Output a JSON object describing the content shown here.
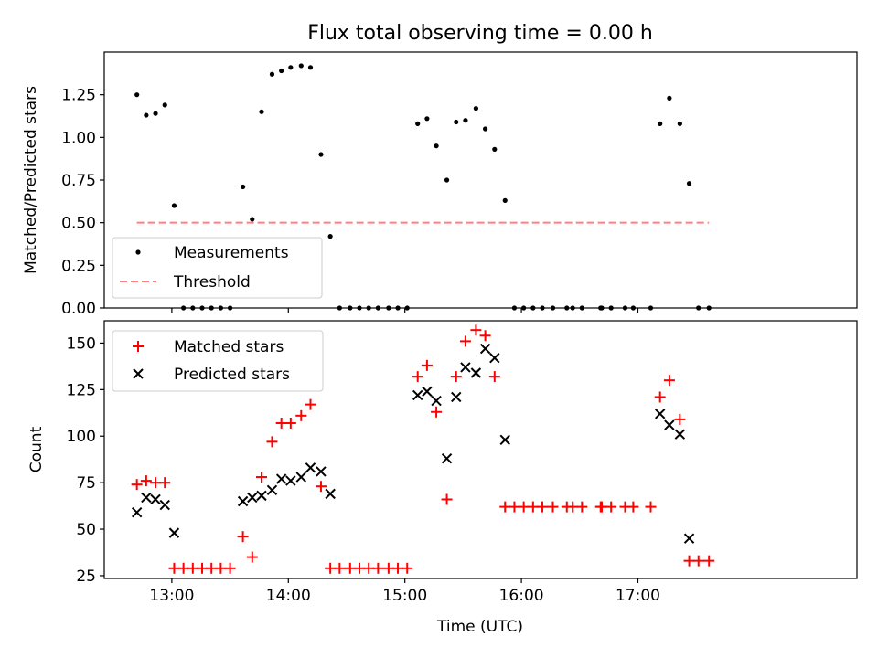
{
  "title": "Flux total observing time = 0.00 h",
  "colors": {
    "measurements": "#000000",
    "threshold": "#ff7f7f",
    "matched": "#ff0000",
    "predicted": "#000000"
  },
  "chart_data": [
    {
      "type": "scatter",
      "ylabel": "Matched/Predicted stars",
      "xlim_hours": [
        12.42,
        18.88
      ],
      "ylim": [
        0,
        1.5
      ],
      "yticks": [
        0.0,
        0.25,
        0.5,
        0.75,
        1.0,
        1.25
      ],
      "ytick_labels": [
        "0.00",
        "0.25",
        "0.50",
        "0.75",
        "1.00",
        "1.25"
      ],
      "grid": false,
      "legend": {
        "position": "lower-left",
        "entries": [
          {
            "key": "measurements",
            "label": "Measurements"
          },
          {
            "key": "threshold",
            "label": "Threshold"
          }
        ]
      },
      "series": [
        {
          "key": "measurements",
          "name": "Measurements",
          "marker": "dot",
          "points": [
            [
              12.7,
              1.25
            ],
            [
              12.78,
              1.13
            ],
            [
              12.86,
              1.14
            ],
            [
              12.94,
              1.19
            ],
            [
              13.02,
              0.6
            ],
            [
              13.1,
              0.0
            ],
            [
              13.18,
              0.0
            ],
            [
              13.26,
              0.0
            ],
            [
              13.34,
              0.0
            ],
            [
              13.42,
              0.0
            ],
            [
              13.5,
              0.0
            ],
            [
              13.61,
              0.71
            ],
            [
              13.69,
              0.52
            ],
            [
              13.77,
              1.15
            ],
            [
              13.86,
              1.37
            ],
            [
              13.94,
              1.39
            ],
            [
              14.02,
              1.41
            ],
            [
              14.11,
              1.42
            ],
            [
              14.19,
              1.41
            ],
            [
              14.28,
              0.9
            ],
            [
              14.36,
              0.42
            ],
            [
              14.44,
              0.0
            ],
            [
              14.53,
              0.0
            ],
            [
              14.61,
              0.0
            ],
            [
              14.69,
              0.0
            ],
            [
              14.77,
              0.0
            ],
            [
              14.86,
              0.0
            ],
            [
              14.94,
              0.0
            ],
            [
              15.02,
              0.0
            ],
            [
              15.11,
              1.08
            ],
            [
              15.19,
              1.11
            ],
            [
              15.27,
              0.95
            ],
            [
              15.36,
              0.75
            ],
            [
              15.44,
              1.09
            ],
            [
              15.52,
              1.1
            ],
            [
              15.61,
              1.17
            ],
            [
              15.69,
              1.05
            ],
            [
              15.77,
              0.93
            ],
            [
              15.86,
              0.63
            ],
            [
              15.94,
              0.0
            ],
            [
              16.02,
              0.0
            ],
            [
              16.1,
              0.0
            ],
            [
              16.18,
              0.0
            ],
            [
              16.27,
              0.0
            ],
            [
              16.39,
              0.0
            ],
            [
              16.44,
              0.0
            ],
            [
              16.52,
              0.0
            ],
            [
              16.68,
              0.0
            ],
            [
              16.69,
              0.0
            ],
            [
              16.77,
              0.0
            ],
            [
              16.89,
              0.0
            ],
            [
              16.96,
              0.0
            ],
            [
              17.11,
              0.0
            ],
            [
              17.19,
              1.08
            ],
            [
              17.27,
              1.23
            ],
            [
              17.36,
              1.08
            ],
            [
              17.44,
              0.73
            ],
            [
              17.52,
              0.0
            ],
            [
              17.61,
              0.0
            ]
          ]
        },
        {
          "key": "threshold",
          "name": "Threshold",
          "type": "line",
          "style": "dashed",
          "points": [
            [
              12.7,
              0.5
            ],
            [
              17.61,
              0.5
            ]
          ]
        }
      ]
    },
    {
      "type": "scatter",
      "xlabel": "Time (UTC)",
      "ylabel": "Count",
      "xlim_hours": [
        12.42,
        18.88
      ],
      "ylim": [
        23.5,
        162
      ],
      "yticks": [
        25,
        50,
        75,
        100,
        125,
        150
      ],
      "ytick_labels": [
        "25",
        "50",
        "75",
        "100",
        "125",
        "150"
      ],
      "xticks_hours": [
        13,
        14,
        15,
        16,
        17
      ],
      "xtick_labels": [
        "13:00",
        "14:00",
        "15:00",
        "16:00",
        "17:00"
      ],
      "grid": false,
      "legend": {
        "position": "upper-left",
        "entries": [
          {
            "key": "matched",
            "label": "Matched stars"
          },
          {
            "key": "predicted",
            "label": "Predicted stars"
          }
        ]
      },
      "series": [
        {
          "key": "matched",
          "name": "Matched stars",
          "marker": "plus",
          "points": [
            [
              12.7,
              74
            ],
            [
              12.78,
              76
            ],
            [
              12.86,
              75
            ],
            [
              12.94,
              75
            ],
            [
              13.02,
              29
            ],
            [
              13.1,
              29
            ],
            [
              13.18,
              29
            ],
            [
              13.26,
              29
            ],
            [
              13.34,
              29
            ],
            [
              13.42,
              29
            ],
            [
              13.5,
              29
            ],
            [
              13.61,
              46
            ],
            [
              13.69,
              35
            ],
            [
              13.77,
              78
            ],
            [
              13.86,
              97
            ],
            [
              13.94,
              107
            ],
            [
              14.02,
              107
            ],
            [
              14.11,
              111
            ],
            [
              14.19,
              117
            ],
            [
              14.28,
              73
            ],
            [
              14.36,
              29
            ],
            [
              14.44,
              29
            ],
            [
              14.53,
              29
            ],
            [
              14.61,
              29
            ],
            [
              14.69,
              29
            ],
            [
              14.77,
              29
            ],
            [
              14.86,
              29
            ],
            [
              14.94,
              29
            ],
            [
              15.02,
              29
            ],
            [
              15.11,
              132
            ],
            [
              15.19,
              138
            ],
            [
              15.27,
              113
            ],
            [
              15.36,
              66
            ],
            [
              15.44,
              132
            ],
            [
              15.52,
              151
            ],
            [
              15.61,
              157
            ],
            [
              15.69,
              154
            ],
            [
              15.77,
              132
            ],
            [
              15.86,
              62
            ],
            [
              15.94,
              62
            ],
            [
              16.02,
              62
            ],
            [
              16.1,
              62
            ],
            [
              16.18,
              62
            ],
            [
              16.27,
              62
            ],
            [
              16.39,
              62
            ],
            [
              16.44,
              62
            ],
            [
              16.52,
              62
            ],
            [
              16.68,
              62
            ],
            [
              16.69,
              62
            ],
            [
              16.77,
              62
            ],
            [
              16.89,
              62
            ],
            [
              16.96,
              62
            ],
            [
              17.11,
              62
            ],
            [
              17.19,
              121
            ],
            [
              17.27,
              130
            ],
            [
              17.36,
              109
            ],
            [
              17.44,
              33
            ],
            [
              17.52,
              33
            ],
            [
              17.61,
              33
            ]
          ]
        },
        {
          "key": "predicted",
          "name": "Predicted stars",
          "marker": "x",
          "points": [
            [
              12.7,
              59
            ],
            [
              12.78,
              67
            ],
            [
              12.86,
              66
            ],
            [
              12.94,
              63
            ],
            [
              13.02,
              48
            ],
            [
              13.61,
              65
            ],
            [
              13.69,
              67
            ],
            [
              13.77,
              68
            ],
            [
              13.86,
              71
            ],
            [
              13.94,
              77
            ],
            [
              14.02,
              76
            ],
            [
              14.11,
              78
            ],
            [
              14.19,
              83
            ],
            [
              14.28,
              81
            ],
            [
              14.36,
              69
            ],
            [
              15.11,
              122
            ],
            [
              15.19,
              124
            ],
            [
              15.27,
              119
            ],
            [
              15.36,
              88
            ],
            [
              15.44,
              121
            ],
            [
              15.52,
              137
            ],
            [
              15.61,
              134
            ],
            [
              15.69,
              147
            ],
            [
              15.77,
              142
            ],
            [
              15.86,
              98
            ],
            [
              17.19,
              112
            ],
            [
              17.27,
              106
            ],
            [
              17.36,
              101
            ],
            [
              17.44,
              45
            ]
          ]
        }
      ]
    }
  ]
}
